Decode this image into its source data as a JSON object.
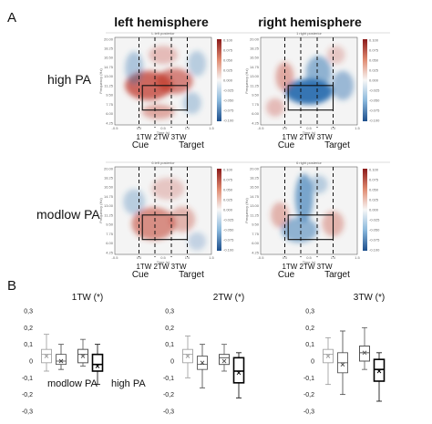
{
  "panel_a": {
    "letter": "A",
    "col_titles": [
      "left hemisphere",
      "right hemisphere"
    ],
    "row_titles": [
      "high PA",
      "modlow PA"
    ],
    "subplot_titles": [
      "L left posterior",
      "1 right posterior",
      "6 left posterior",
      "6 right posterior"
    ],
    "axis_small": {
      "ylabel": "Frequency (Hz)",
      "xlabel": "Time (s)"
    },
    "y_ticks": [
      "20.00",
      "18.25",
      "16.50",
      "14.75",
      "13.00",
      "11.25",
      "9.50",
      "7.75",
      "6.00",
      "4.25"
    ],
    "x_ticks": [
      "-0.5",
      "0.0",
      "0.5",
      "1.0",
      "1.5"
    ],
    "colorbar_ticks": [
      "0.100",
      "0.075",
      "0.050",
      "0.025",
      "0.000",
      "-0.025",
      "-0.050",
      "-0.075",
      "-0.100"
    ],
    "tw_labels": "1TW 2TW 3TW",
    "cue_label": "Cue",
    "target_label": "Target",
    "colors": {
      "positive": "#c0392b",
      "negative": "#2a6fb0",
      "neutral": "#f4f4f4"
    }
  },
  "panel_b": {
    "letter": "B",
    "legend_low": "modlow PA",
    "legend_high": "high PA",
    "y_ticks": [
      "0,3",
      "0,2",
      "0,1",
      "0",
      "-0,1",
      "-0,2",
      "-0,3"
    ],
    "ylim": [
      -0.3,
      0.3
    ]
  },
  "chart_data": [
    {
      "type": "box",
      "title": "1TW (*)",
      "categories": [
        "modlow PA",
        "high PA"
      ],
      "ylim": [
        -0.3,
        0.3
      ],
      "series": [
        {
          "group": "modlow PA",
          "q1": -0.01,
          "median": 0.04,
          "q3": 0.07,
          "mean": 0.03,
          "whisker_low": -0.06,
          "whisker_high": 0.16
        },
        {
          "group": "modlow PA",
          "q1": -0.02,
          "median": 0.0,
          "q3": 0.04,
          "mean": 0.0,
          "whisker_low": -0.05,
          "whisker_high": 0.1
        },
        {
          "group": "high PA",
          "q1": -0.01,
          "median": 0.04,
          "q3": 0.07,
          "mean": 0.03,
          "whisker_low": -0.03,
          "whisker_high": 0.13
        },
        {
          "group": "high PA",
          "q1": -0.06,
          "median": -0.02,
          "q3": 0.04,
          "mean": -0.03,
          "whisker_low": -0.14,
          "whisker_high": 0.1
        }
      ]
    },
    {
      "type": "box",
      "title": "2TW (*)",
      "categories": [
        "modlow PA",
        "high PA"
      ],
      "ylim": [
        -0.3,
        0.3
      ],
      "series": [
        {
          "group": "modlow PA",
          "q1": -0.01,
          "median": 0.04,
          "q3": 0.07,
          "mean": 0.03,
          "whisker_low": -0.1,
          "whisker_high": 0.15
        },
        {
          "group": "modlow PA",
          "q1": -0.05,
          "median": -0.02,
          "q3": 0.03,
          "mean": -0.01,
          "whisker_low": -0.16,
          "whisker_high": 0.1
        },
        {
          "group": "high PA",
          "q1": -0.02,
          "median": 0.02,
          "q3": 0.04,
          "mean": 0.0,
          "whisker_low": -0.06,
          "whisker_high": 0.1
        },
        {
          "group": "high PA",
          "q1": -0.13,
          "median": -0.06,
          "q3": 0.02,
          "mean": -0.07,
          "whisker_low": -0.22,
          "whisker_high": 0.05
        }
      ]
    },
    {
      "type": "box",
      "title": "3TW (*)",
      "categories": [
        "modlow PA",
        "high PA"
      ],
      "ylim": [
        -0.3,
        0.3
      ],
      "series": [
        {
          "group": "modlow PA",
          "q1": -0.01,
          "median": 0.04,
          "q3": 0.07,
          "mean": 0.03,
          "whisker_low": -0.14,
          "whisker_high": 0.14
        },
        {
          "group": "modlow PA",
          "q1": -0.07,
          "median": -0.01,
          "q3": 0.05,
          "mean": -0.02,
          "whisker_low": -0.2,
          "whisker_high": 0.18
        },
        {
          "group": "high PA",
          "q1": 0.0,
          "median": 0.05,
          "q3": 0.09,
          "mean": 0.05,
          "whisker_low": -0.05,
          "whisker_high": 0.2
        },
        {
          "group": "high PA",
          "q1": -0.12,
          "median": -0.05,
          "q3": 0.01,
          "mean": -0.06,
          "whisker_low": -0.24,
          "whisker_high": 0.05
        }
      ]
    }
  ]
}
